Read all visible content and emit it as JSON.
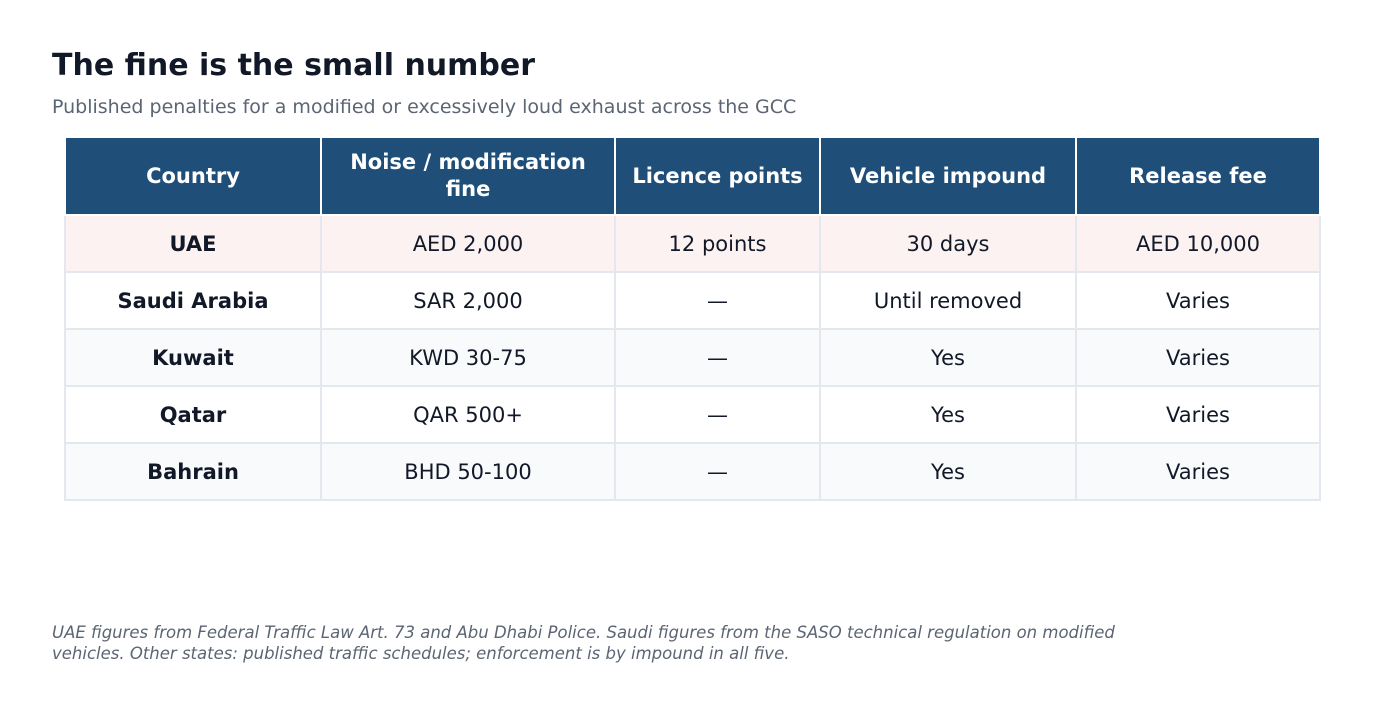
{
  "title": "The fine is the small number",
  "subtitle": "Published penalties for a modified or excessively loud exhaust across the GCC",
  "colors": {
    "header_bg": "#1f4e79",
    "highlight_row_bg": "#fdf2f2",
    "zebra_row_bg": "#f9fafc",
    "row_bg": "#ffffff"
  },
  "chart_data": {
    "type": "table",
    "columns": [
      {
        "key": "country",
        "label": "Country"
      },
      {
        "key": "fine",
        "label": "Noise / modification fine"
      },
      {
        "key": "points",
        "label": "Licence points"
      },
      {
        "key": "impound",
        "label": "Vehicle impound"
      },
      {
        "key": "release",
        "label": "Release fee"
      }
    ],
    "rows": [
      {
        "country": "UAE",
        "fine": "AED 2,000",
        "points": "12 points",
        "impound": "30 days",
        "release": "AED 10,000",
        "highlight": true
      },
      {
        "country": "Saudi Arabia",
        "fine": "SAR 2,000",
        "points": "—",
        "impound": "Until removed",
        "release": "Varies",
        "highlight": false
      },
      {
        "country": "Kuwait",
        "fine": "KWD 30-75",
        "points": "—",
        "impound": "Yes",
        "release": "Varies",
        "highlight": false
      },
      {
        "country": "Qatar",
        "fine": "QAR 500+",
        "points": "—",
        "impound": "Yes",
        "release": "Varies",
        "highlight": false
      },
      {
        "country": "Bahrain",
        "fine": "BHD 50-100",
        "points": "—",
        "impound": "Yes",
        "release": "Varies",
        "highlight": false
      }
    ]
  },
  "footnote": "UAE figures from Federal Traffic Law Art. 73 and Abu Dhabi Police. Saudi figures from the SASO technical regulation on modified vehicles. Other states: published traffic schedules; enforcement is by impound in all five."
}
